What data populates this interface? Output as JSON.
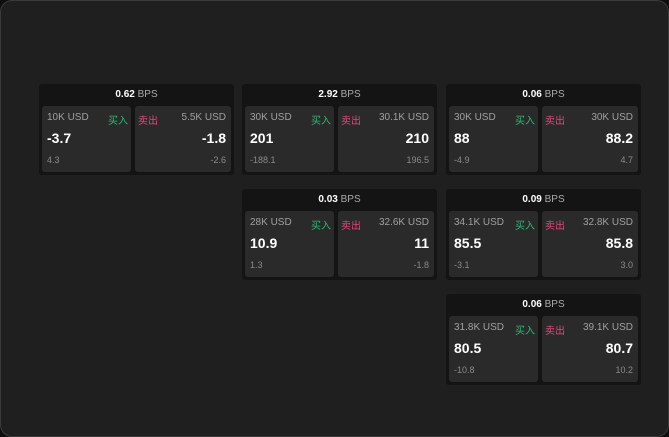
{
  "unit": "BPS",
  "buy_label": "买入",
  "sell_label": "卖出",
  "colors": {
    "buy": "#2eb872",
    "sell": "#e0487a"
  },
  "cards": [
    {
      "spread": "0.62",
      "bid_size": "10K USD",
      "bid": "-3.7",
      "bid_change": "4.3",
      "ask_size": "5.5K USD",
      "ask": "-1.8",
      "ask_change": "-2.6"
    },
    {
      "spread": "2.92",
      "bid_size": "30K USD",
      "bid": "201",
      "bid_change": "-188.1",
      "ask_size": "30.1K USD",
      "ask": "210",
      "ask_change": "196.5"
    },
    {
      "spread": "0.06",
      "bid_size": "30K USD",
      "bid": "88",
      "bid_change": "-4.9",
      "ask_size": "30K USD",
      "ask": "88.2",
      "ask_change": "4.7"
    },
    {
      "spread": "0.03",
      "bid_size": "28K USD",
      "bid": "10.9",
      "bid_change": "1.3",
      "ask_size": "32.6K USD",
      "ask": "11",
      "ask_change": "-1.8"
    },
    {
      "spread": "0.09",
      "bid_size": "34.1K USD",
      "bid": "85.5",
      "bid_change": "-3.1",
      "ask_size": "32.8K USD",
      "ask": "85.8",
      "ask_change": "3.0"
    },
    {
      "spread": "0.06",
      "bid_size": "31.8K USD",
      "bid": "80.5",
      "bid_change": "-10.8",
      "ask_size": "39.1K USD",
      "ask": "80.7",
      "ask_change": "10.2"
    }
  ]
}
